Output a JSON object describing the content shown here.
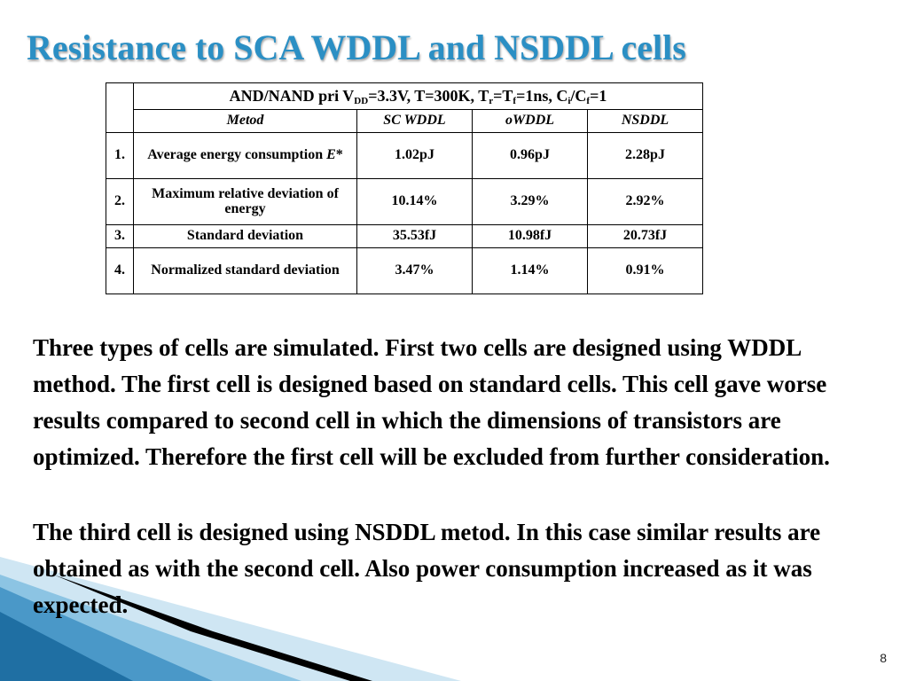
{
  "title": "Resistance to SCA WDDL and NSDDL cells",
  "table": {
    "condition": {
      "prefix": "AND/NAND pri V",
      "sub1": "DD",
      "mid1": "=3.3V, T=300K, T",
      "sub2": "r",
      "mid2": "=T",
      "sub3": "f",
      "mid3": "=1ns, C",
      "sub4": "i",
      "mid4": "/C",
      "sub5": "f",
      "suffix": "=1"
    },
    "headers": [
      "Metod",
      "SC WDDL",
      "oWDDL",
      "NSDDL"
    ],
    "rows": [
      {
        "num": "1.",
        "metric": "Average energy consumption ",
        "metric_var": "E",
        "metric_suffix": "*",
        "values": [
          "1.02pJ",
          "0.96pJ",
          "2.28pJ"
        ]
      },
      {
        "num": "2.",
        "metric": "Maximum relative deviation of energy",
        "values": [
          "10.14%",
          "3.29%",
          "2.92%"
        ]
      },
      {
        "num": "3.",
        "metric": "Standard deviation",
        "values": [
          "35.53fJ",
          "10.98fJ",
          "20.73fJ"
        ]
      },
      {
        "num": "4.",
        "metric": "Normalized standard deviation",
        "values": [
          "3.47%",
          "1.14%",
          "0.91%"
        ]
      }
    ]
  },
  "paragraphs": [
    "Three types of cells are simulated. First two cells are designed using WDDL method. The first cell is designed based on standard cells. This cell gave worse results compared to second cell in which the dimensions of transistors are optimized. Therefore the first cell will be excluded from further consideration.",
    "The third cell is designed using NSDDL metod. In this case similar results are obtained as with the second cell. Also power consumption  increased as it was expected."
  ],
  "page_number": "8",
  "colors": {
    "title": "#2b8fc4",
    "decor_light": "#cfe6f3",
    "decor_mid": "#6fb3da",
    "decor_dark": "#1f6fa3"
  }
}
